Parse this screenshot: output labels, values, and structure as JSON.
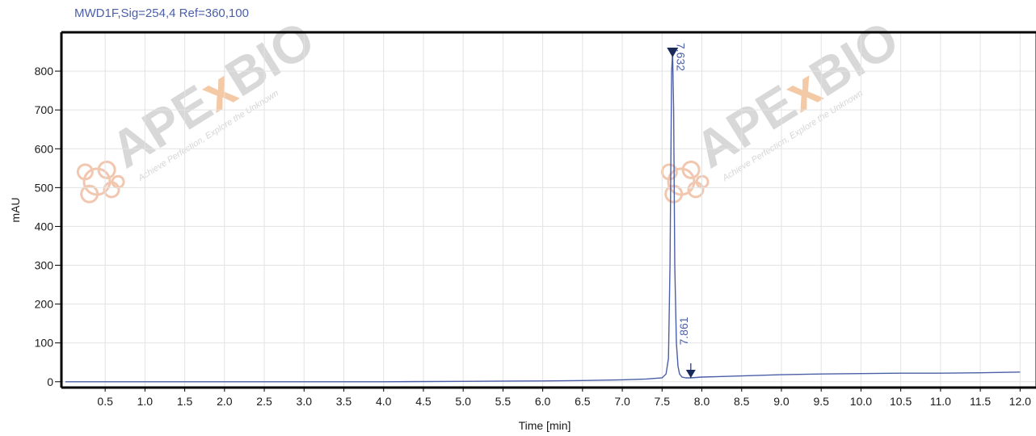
{
  "signal": {
    "title": "MWD1F,Sig=254,4  Ref=360,100"
  },
  "watermark": {
    "brand_a": "APE",
    "brand_x": "x",
    "brand_b": "BIO",
    "tagline": "Achieve Perfection, Explore the Unknown"
  },
  "chart_data": {
    "type": "line",
    "title": "MWD1F,Sig=254,4  Ref=360,100",
    "xlabel": "Time [min]",
    "ylabel": "mAU",
    "xlim": [
      -0.05,
      12.2
    ],
    "ylim": [
      -15,
      900
    ],
    "grid": true,
    "x_ticks": [
      0.5,
      1.0,
      1.5,
      2.0,
      2.5,
      3.0,
      3.5,
      4.0,
      4.5,
      5.0,
      5.5,
      6.0,
      6.5,
      7.0,
      7.5,
      8.0,
      8.5,
      9.0,
      9.5,
      10.0,
      10.5,
      11.0,
      11.5,
      12.0
    ],
    "x_tick_labels": [
      "0.5",
      "1.0",
      "1.5",
      "2.0",
      "2.5",
      "3.0",
      "3.5",
      "4.0",
      "4.5",
      "5.0",
      "5.5",
      "6.0",
      "6.5",
      "7.0",
      "7.5",
      "8.0",
      "8.5",
      "9.0",
      "9.5",
      "10.0",
      "10.5",
      "11.0",
      "11.5",
      "12.0"
    ],
    "y_ticks": [
      0,
      100,
      200,
      300,
      400,
      500,
      600,
      700,
      800
    ],
    "y_tick_labels": [
      "0",
      "100",
      "200",
      "300",
      "400",
      "500",
      "600",
      "700",
      "800"
    ],
    "series": [
      {
        "color": "#4a5fa8",
        "x": [
          0.0,
          1.0,
          2.0,
          3.0,
          4.0,
          5.0,
          6.0,
          6.5,
          7.0,
          7.3,
          7.5,
          7.55,
          7.58,
          7.6,
          7.62,
          7.632,
          7.645,
          7.66,
          7.68,
          7.7,
          7.72,
          7.75,
          7.8,
          7.861,
          8.0,
          8.5,
          9.0,
          9.5,
          10.0,
          10.5,
          11.0,
          11.5,
          12.0
        ],
        "y": [
          0,
          0,
          0,
          0,
          0,
          1,
          2,
          3,
          5,
          7,
          10,
          20,
          60,
          300,
          800,
          848,
          700,
          300,
          100,
          40,
          20,
          12,
          10,
          10,
          12,
          15,
          18,
          20,
          21,
          22,
          22,
          23,
          25
        ]
      }
    ],
    "peaks": [
      {
        "time": 7.632,
        "label": "7.632",
        "y": 848
      },
      {
        "time": 7.861,
        "label": "7.861",
        "y": 10
      }
    ]
  }
}
